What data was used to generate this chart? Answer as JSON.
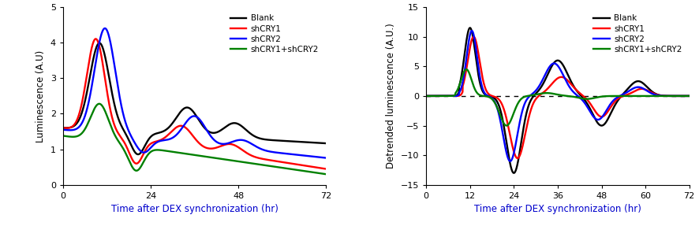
{
  "left": {
    "ylabel": "Luminescence (A.U)",
    "xlabel": "Time after DEX synchronization (hr)",
    "xlim": [
      0,
      72
    ],
    "ylim": [
      0,
      5
    ],
    "yticks": [
      0,
      1,
      2,
      3,
      4,
      5
    ],
    "xticks": [
      0,
      24,
      48,
      72
    ],
    "legend": [
      "Blank",
      "shCRY1",
      "shCRY2",
      "shCRY1+shCRY2"
    ],
    "colors": [
      "black",
      "red",
      "blue",
      "green"
    ]
  },
  "right": {
    "ylabel": "Detrended luminescence (A.U.)",
    "xlabel": "Time after DEX synchronization (hr)",
    "xlim": [
      0,
      72
    ],
    "ylim": [
      -15,
      15
    ],
    "yticks": [
      -15,
      -10,
      -5,
      0,
      5,
      10,
      15
    ],
    "xticks": [
      0,
      12,
      24,
      36,
      48,
      60,
      72
    ],
    "legend": [
      "Blank",
      "shCRY1",
      "shCRY2",
      "shCRY1+shCRY2"
    ],
    "colors": [
      "black",
      "red",
      "blue",
      "green"
    ]
  },
  "fig_width": 8.87,
  "fig_height": 3.01,
  "dpi": 100
}
